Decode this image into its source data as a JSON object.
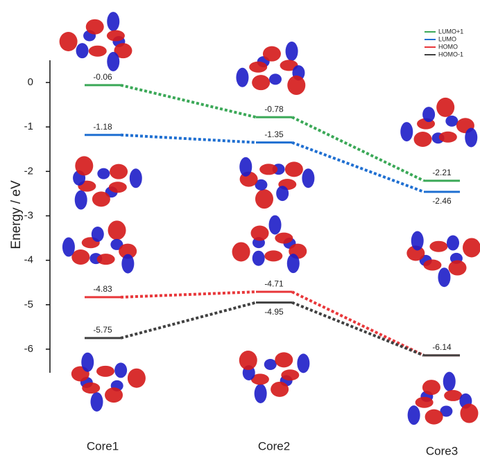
{
  "chart_data": {
    "type": "level",
    "ylabel": "Energy / eV",
    "categories": [
      "Core1",
      "Core2",
      "Core3"
    ],
    "series": [
      {
        "name": "LUMO+1",
        "color": "#3aa857",
        "values": [
          -0.06,
          -0.78,
          -2.21
        ]
      },
      {
        "name": "LUMO",
        "color": "#1f6fd1",
        "values": [
          -1.18,
          -1.35,
          -2.46
        ]
      },
      {
        "name": "HOMO",
        "color": "#e8373a",
        "values": [
          -4.83,
          -4.71,
          -6.14
        ]
      },
      {
        "name": "HOMO-1",
        "color": "#404040",
        "values": [
          -5.75,
          -4.95,
          -6.14
        ]
      }
    ],
    "ylim": [
      -6.5,
      0.5
    ],
    "yticks": [
      0,
      -1,
      -2,
      -3,
      -4,
      -5,
      -6
    ],
    "legend": "upper right"
  }
}
